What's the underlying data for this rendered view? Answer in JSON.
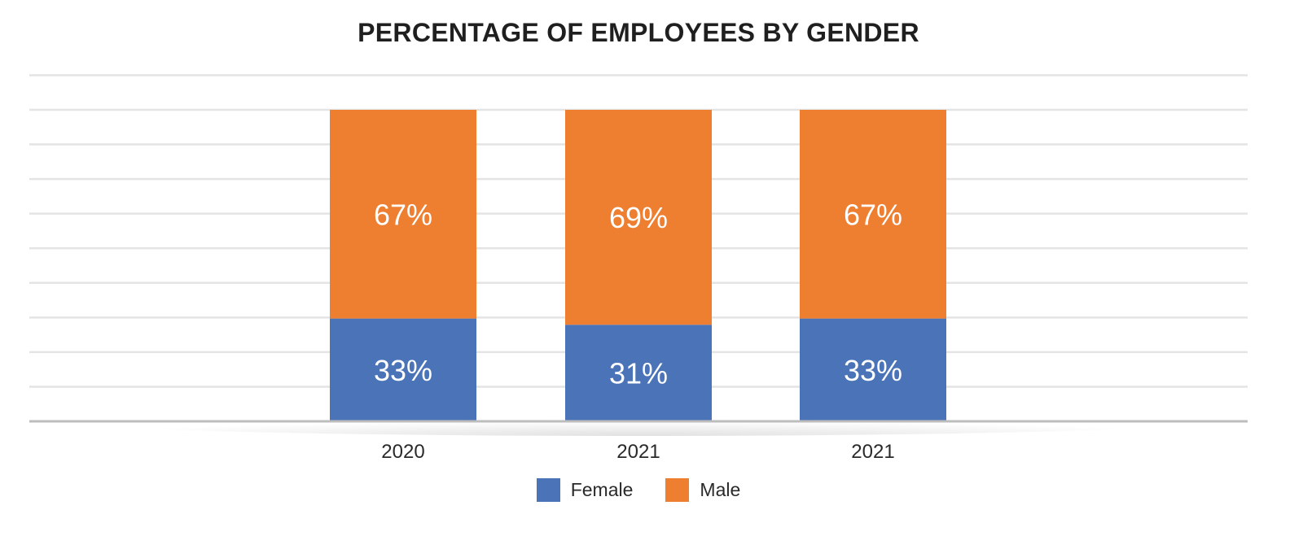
{
  "chart_data": {
    "type": "bar",
    "stacked": true,
    "percent_stacked": true,
    "title": "PERCENTAGE OF EMPLOYEES BY GENDER",
    "xlabel": "",
    "ylabel": "",
    "categories": [
      "2020",
      "2021",
      "2021"
    ],
    "series": [
      {
        "name": "Female",
        "values": [
          33,
          31,
          33
        ],
        "color": "#4a73b8",
        "labels": [
          "33%",
          "31%",
          "33%"
        ]
      },
      {
        "name": "Male",
        "values": [
          67,
          69,
          67
        ],
        "color": "#ee7f31",
        "labels": [
          "67%",
          "69%",
          "67%"
        ]
      }
    ],
    "ylim": [
      0,
      100
    ],
    "grid": true,
    "legend_position": "bottom-center",
    "gridline_color": "#e4e4e4",
    "axis_color": "#bdbdbd"
  }
}
